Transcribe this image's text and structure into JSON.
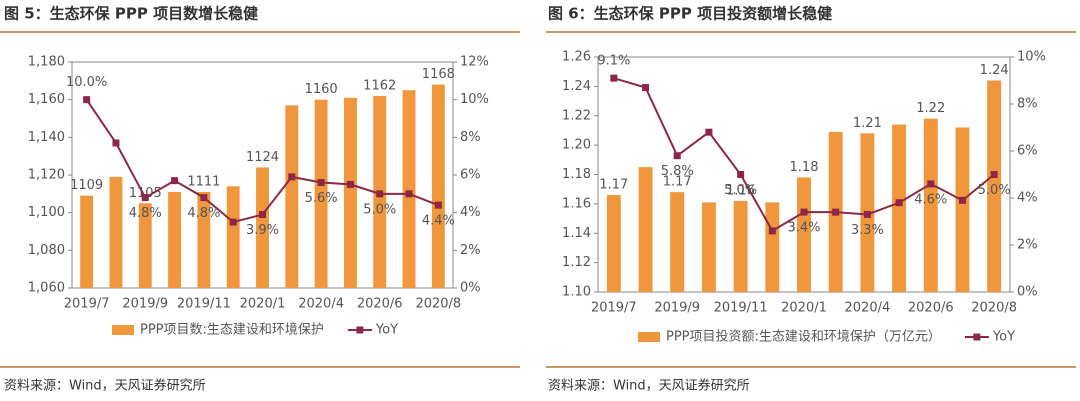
{
  "chart_data": [
    {
      "type": "bar_line",
      "title": "图 5：生态环保 PPP 项目数增长稳健",
      "source": "资料来源：Wind，天风证券研究所",
      "categories": [
        "2019/7",
        null,
        "2019/9",
        null,
        "2019/11",
        null,
        "2020/1",
        null,
        "2020/4",
        null,
        "2020/6",
        null,
        "2020/8"
      ],
      "series": [
        {
          "name": "PPP项目数:生态建设和环境保护",
          "type": "bar",
          "color": "#f0963c",
          "values": [
            1109,
            1119,
            1105,
            1111,
            1111,
            1114,
            1124,
            1157,
            1160,
            1161,
            1162,
            1165,
            1168
          ],
          "value_labels": [
            "1109",
            null,
            "1105",
            null,
            "1111",
            null,
            "1124",
            null,
            "1160",
            null,
            "1162",
            null,
            "1168"
          ]
        },
        {
          "name": "YoY",
          "type": "line",
          "axis": "y2",
          "color": "#8c2846",
          "values": [
            10.0,
            7.7,
            4.8,
            5.7,
            4.8,
            3.5,
            3.9,
            5.9,
            5.6,
            5.5,
            5.0,
            5.0,
            4.4
          ],
          "value_labels": [
            "10.0%",
            null,
            "4.8%",
            null,
            "4.8%",
            null,
            "3.9%",
            null,
            "5.6%",
            null,
            "5.0%",
            null,
            "4.4%"
          ]
        }
      ],
      "ylim": [
        1060,
        1180
      ],
      "yticks": [
        {
          "value": 1060,
          "label": "1,060"
        },
        {
          "value": 1080,
          "label": "1,080"
        },
        {
          "value": 1100,
          "label": "1,100"
        },
        {
          "value": 1120,
          "label": "1,120"
        },
        {
          "value": 1140,
          "label": "1,140"
        },
        {
          "value": 1160,
          "label": "1,160"
        },
        {
          "value": 1180,
          "label": "1,180"
        }
      ],
      "y2lim": [
        0,
        12
      ],
      "y2ticks": [
        {
          "value": 0,
          "label": "0%"
        },
        {
          "value": 2,
          "label": "2%"
        },
        {
          "value": 4,
          "label": "4%"
        },
        {
          "value": 6,
          "label": "6%"
        },
        {
          "value": 8,
          "label": "8%"
        },
        {
          "value": 10,
          "label": "10%"
        },
        {
          "value": 12,
          "label": "12%"
        }
      ],
      "legend": "bottom"
    },
    {
      "type": "bar_line",
      "title": "图 6：生态环保 PPP 项目投资额增长稳健",
      "source": "资料来源：Wind，天风证券研究所",
      "categories": [
        "2019/7",
        null,
        "2019/9",
        null,
        "2019/11",
        null,
        "2020/1",
        null,
        "2020/4",
        null,
        "2020/6",
        null,
        "2020/8"
      ],
      "series": [
        {
          "name": "PPP项目投资额:生态建设和环境保护（万亿元）",
          "type": "bar",
          "color": "#f0963c",
          "values": [
            1.166,
            1.185,
            1.168,
            1.161,
            1.162,
            1.161,
            1.178,
            1.209,
            1.208,
            1.214,
            1.218,
            1.212,
            1.244
          ],
          "value_labels": [
            "1.17",
            null,
            "1.17",
            null,
            "1.16",
            null,
            "1.18",
            null,
            "1.21",
            null,
            "1.22",
            null,
            "1.24"
          ]
        },
        {
          "name": "YoY",
          "type": "line",
          "axis": "y2",
          "color": "#8c2846",
          "values": [
            9.1,
            8.7,
            5.8,
            6.8,
            5.0,
            2.6,
            3.4,
            3.4,
            3.3,
            3.8,
            4.6,
            3.9,
            5.0
          ],
          "value_labels": [
            "9.1%",
            null,
            "5.8%",
            null,
            "5.0%",
            null,
            "3.4%",
            null,
            "3.3%",
            null,
            "4.6%",
            null,
            "5.0%"
          ]
        }
      ],
      "ylim": [
        1.1,
        1.26
      ],
      "yticks": [
        {
          "value": 1.1,
          "label": "1.10"
        },
        1.12,
        1.14,
        1.16,
        1.18,
        {
          "value": 1.2,
          "label": "1.20"
        },
        1.22,
        1.24,
        1.26
      ],
      "y2lim": [
        0,
        10
      ],
      "y2ticks": [
        {
          "value": 0,
          "label": "0%"
        },
        {
          "value": 2,
          "label": "2%"
        },
        {
          "value": 4,
          "label": "4%"
        },
        {
          "value": 6,
          "label": "6%"
        },
        {
          "value": 8,
          "label": "8%"
        },
        {
          "value": 10,
          "label": "10%"
        }
      ],
      "legend": "bottom"
    }
  ]
}
